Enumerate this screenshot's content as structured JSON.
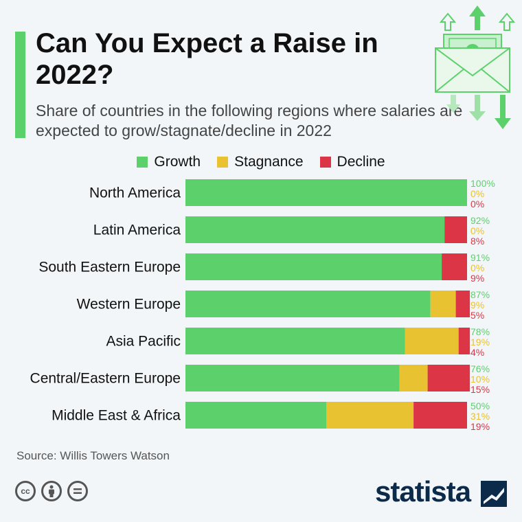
{
  "title": "Can You Expect a Raise in 2022?",
  "subtitle": "Share of countries in the following regions where salaries are expected to grow/stagnate/decline in 2022",
  "source": "Source: Willis Towers Watson",
  "brand": "statista",
  "colors": {
    "growth": "#5cd16b",
    "stagnance": "#e8c230",
    "decline": "#dc3545",
    "accent": "#5cd16b",
    "brand": "#0c2a4a"
  },
  "icons": [
    "money-envelope-icon",
    "cc-icon",
    "by-icon",
    "nd-icon",
    "statista-logo-icon"
  ],
  "chart_data": {
    "type": "bar",
    "orientation": "horizontal",
    "stacked": true,
    "title": "Can You Expect a Raise in 2022?",
    "subtitle": "Share of countries in the following regions where salaries are expected to grow/stagnate/decline in 2022",
    "legend_position": "top",
    "xlim": [
      0,
      100
    ],
    "grid": false,
    "categories": [
      "North America",
      "Latin America",
      "South Eastern Europe",
      "Western Europe",
      "Asia Pacific",
      "Central/Eastern Europe",
      "Middle East & Africa"
    ],
    "series": [
      {
        "name": "Growth",
        "color": "#5cd16b",
        "values": [
          100,
          92,
          91,
          87,
          78,
          76,
          50
        ],
        "labels": [
          "100%",
          "92%",
          "91%",
          "87%",
          "78%",
          "76%",
          "50%"
        ]
      },
      {
        "name": "Stagnance",
        "color": "#e8c230",
        "values": [
          0,
          0,
          0,
          9,
          19,
          10,
          31
        ],
        "labels": [
          "0%",
          "0%",
          "0%",
          "9%",
          "19%",
          "10%",
          "31%"
        ]
      },
      {
        "name": "Decline",
        "color": "#dc3545",
        "values": [
          0,
          8,
          9,
          5,
          4,
          15,
          19
        ],
        "labels": [
          "0%",
          "8%",
          "9%",
          "5%",
          "4%",
          "15%",
          "19%"
        ]
      }
    ]
  }
}
